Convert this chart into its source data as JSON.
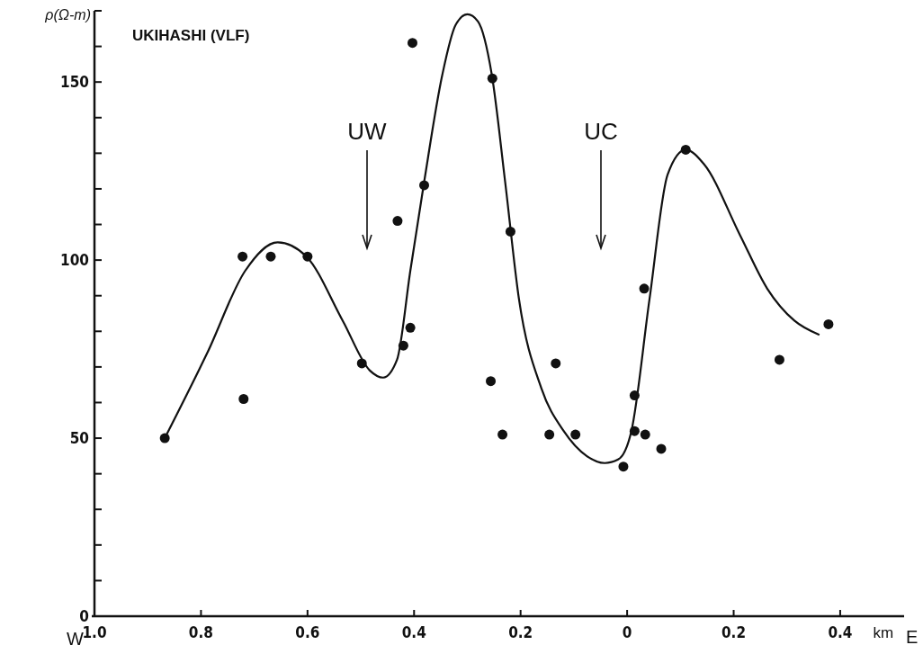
{
  "chart_data": {
    "type": "scatter",
    "title": "UKIHASHI (VLF)",
    "ylabel": "ρ(Ω-m)",
    "xlabel": "km",
    "annotations": [
      "UW",
      "UC",
      "W",
      "E"
    ],
    "xlim": [
      -1.0,
      0.52
    ],
    "xticks": [
      {
        "value": -1.0,
        "label": "1.0"
      },
      {
        "value": -0.8,
        "label": "0.8"
      },
      {
        "value": -0.6,
        "label": "0.6"
      },
      {
        "value": -0.4,
        "label": "0.4"
      },
      {
        "value": -0.2,
        "label": "0.2"
      },
      0,
      {
        "value": 0.2,
        "label": "0.2"
      },
      {
        "value": 0.4,
        "label": "0.4"
      }
    ],
    "ylim": [
      0,
      170
    ],
    "yticks": [
      0,
      {
        "value": 10,
        "label": null
      },
      {
        "value": 20,
        "label": null
      },
      {
        "value": 30,
        "label": null
      },
      {
        "value": 40,
        "label": null
      },
      50,
      {
        "value": 60,
        "label": null
      },
      {
        "value": 70,
        "label": null
      },
      {
        "value": 80,
        "label": null
      },
      {
        "value": 90,
        "label": null
      },
      100,
      {
        "value": 110,
        "label": null
      },
      {
        "value": 120,
        "label": null
      },
      {
        "value": 130,
        "label": null
      },
      {
        "value": 140,
        "label": null
      },
      150,
      {
        "value": 160,
        "label": null
      },
      {
        "value": 170,
        "label": null
      }
    ],
    "series": [
      {
        "marker": "circle",
        "color": "#111111",
        "x": [
          -0.868,
          -0.72,
          -0.722,
          -0.669,
          -0.6,
          -0.498,
          -0.431,
          -0.42,
          -0.407,
          -0.403,
          -0.381,
          -0.253,
          -0.256,
          -0.234,
          -0.219,
          -0.146,
          -0.134,
          -0.097,
          -0.007,
          0.014,
          0.014,
          0.034,
          0.032,
          0.064,
          0.11,
          0.286,
          0.378
        ],
        "values": [
          50,
          61,
          101,
          101,
          101,
          71,
          111,
          76,
          81,
          161,
          121,
          151,
          66,
          51,
          108,
          51,
          71,
          51,
          42,
          62,
          52,
          51,
          92,
          47,
          131,
          72,
          82
        ]
      },
      {
        "type": "line",
        "marker": "none",
        "line_style": "solid",
        "color": "#111111",
        "x": [
          -0.868,
          -0.788,
          -0.717,
          -0.656,
          -0.602,
          -0.534,
          -0.483,
          -0.458,
          -0.432,
          -0.407,
          -0.381,
          -0.347,
          -0.322,
          -0.3,
          -0.28,
          -0.254,
          -0.229,
          -0.203,
          -0.161,
          -0.119,
          -0.076,
          -0.042,
          -0.017,
          0.008,
          0.042,
          0.076,
          0.11,
          0.144,
          0.212,
          0.263,
          0.314,
          0.361
        ],
        "values": [
          50,
          74,
          97,
          105,
          101,
          83,
          69,
          67,
          72,
          97,
          122,
          152,
          166,
          169,
          167,
          152,
          122,
          89,
          64,
          52,
          45,
          43,
          44,
          52,
          89,
          124,
          131,
          127,
          107,
          92,
          83,
          79
        ]
      }
    ]
  }
}
